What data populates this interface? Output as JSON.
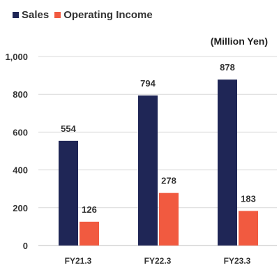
{
  "chart_data": {
    "type": "bar",
    "title": "",
    "xlabel": "",
    "ylabel": "",
    "unit_label": "(Million Yen)",
    "categories": [
      "FY21.3",
      "FY22.3",
      "FY23.3"
    ],
    "series": [
      {
        "name": "Sales",
        "color": "#1f2656",
        "values": [
          554,
          794,
          878
        ]
      },
      {
        "name": "Operating Income",
        "color": "#f15a40",
        "values": [
          126,
          278,
          183
        ]
      }
    ],
    "ylim": [
      0,
      1000
    ],
    "yticks": [
      0,
      200,
      400,
      600,
      800,
      1000
    ],
    "ytick_labels": [
      "0",
      "200",
      "400",
      "600",
      "800",
      "1,000"
    ],
    "grid": true,
    "legend_position": "top-left"
  }
}
